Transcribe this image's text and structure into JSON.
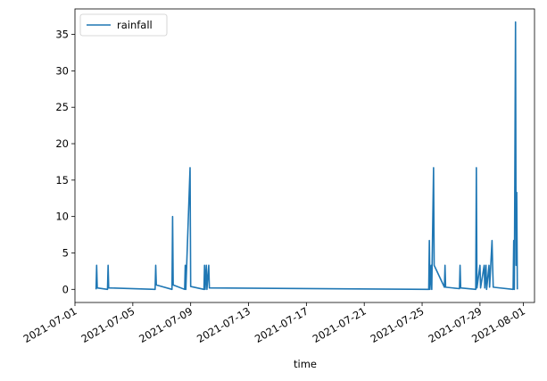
{
  "chart_data": {
    "type": "line",
    "xlabel": "time",
    "ylabel": "",
    "x_range": [
      "2021-07-01",
      "2021-08-01"
    ],
    "ylim": [
      -1.8,
      38.5
    ],
    "y_ticks": [
      0,
      5,
      10,
      15,
      20,
      25,
      30,
      35
    ],
    "x_ticks": [
      "2021-07-01",
      "2021-07-05",
      "2021-07-09",
      "2021-07-13",
      "2021-07-17",
      "2021-07-21",
      "2021-07-25",
      "2021-07-29",
      "2021-08-01"
    ],
    "legend": {
      "position": "top-left",
      "entries": [
        "rainfall"
      ]
    },
    "grid": false,
    "colors": {
      "series": "#1f77b4"
    },
    "series": [
      {
        "name": "rainfall",
        "points": [
          [
            "2021-07-02T11:00",
            0.0
          ],
          [
            "2021-07-02T12:00",
            3.3
          ],
          [
            "2021-07-02T13:00",
            0.2
          ],
          [
            "2021-07-03T06:00",
            0.0
          ],
          [
            "2021-07-03T07:00",
            3.3
          ],
          [
            "2021-07-03T08:00",
            0.2
          ],
          [
            "2021-07-06T13:00",
            0.0
          ],
          [
            "2021-07-06T14:00",
            3.3
          ],
          [
            "2021-07-06T15:00",
            0.6
          ],
          [
            "2021-07-07T17:00",
            0.0
          ],
          [
            "2021-07-07T18:00",
            10.0
          ],
          [
            "2021-07-07T19:00",
            0.6
          ],
          [
            "2021-07-08T14:00",
            0.0
          ],
          [
            "2021-07-08T15:00",
            3.3
          ],
          [
            "2021-07-08T16:00",
            0.0
          ],
          [
            "2021-07-08T23:00",
            16.7
          ],
          [
            "2021-07-09T00:00",
            0.4
          ],
          [
            "2021-07-09T22:00",
            0.0
          ],
          [
            "2021-07-09T23:00",
            3.3
          ],
          [
            "2021-07-10T00:00",
            0.0
          ],
          [
            "2021-07-10T02:00",
            3.3
          ],
          [
            "2021-07-10T03:00",
            0.0
          ],
          [
            "2021-07-10T06:00",
            3.3
          ],
          [
            "2021-07-10T07:00",
            0.2
          ],
          [
            "2021-07-25T11:00",
            0.0
          ],
          [
            "2021-07-25T12:00",
            6.7
          ],
          [
            "2021-07-25T13:00",
            0.0
          ],
          [
            "2021-07-25T15:00",
            3.3
          ],
          [
            "2021-07-25T16:00",
            0.0
          ],
          [
            "2021-07-25T19:00",
            16.7
          ],
          [
            "2021-07-25T20:00",
            3.3
          ],
          [
            "2021-07-26T13:00",
            0.3
          ],
          [
            "2021-07-26T14:00",
            3.3
          ],
          [
            "2021-07-26T15:00",
            0.3
          ],
          [
            "2021-07-27T14:00",
            0.1
          ],
          [
            "2021-07-27T15:00",
            3.3
          ],
          [
            "2021-07-27T16:00",
            0.2
          ],
          [
            "2021-07-28T17:00",
            0.0
          ],
          [
            "2021-07-28T18:00",
            16.7
          ],
          [
            "2021-07-28T19:00",
            0.2
          ],
          [
            "2021-07-29T00:00",
            3.3
          ],
          [
            "2021-07-29T01:00",
            0.2
          ],
          [
            "2021-07-29T07:00",
            3.3
          ],
          [
            "2021-07-29T08:00",
            0.2
          ],
          [
            "2021-07-29T10:00",
            3.3
          ],
          [
            "2021-07-29T11:00",
            0.0
          ],
          [
            "2021-07-29T15:00",
            3.3
          ],
          [
            "2021-07-29T16:00",
            0.3
          ],
          [
            "2021-07-29T20:00",
            6.7
          ],
          [
            "2021-07-29T21:00",
            3.3
          ],
          [
            "2021-07-29T22:00",
            0.3
          ],
          [
            "2021-07-31T07:00",
            0.0
          ],
          [
            "2021-07-31T08:00",
            6.7
          ],
          [
            "2021-07-31T09:00",
            0.0
          ],
          [
            "2021-07-31T11:00",
            36.7
          ],
          [
            "2021-07-31T12:00",
            3.3
          ],
          [
            "2021-07-31T13:00",
            13.3
          ],
          [
            "2021-07-31T14:00",
            0.0
          ]
        ]
      }
    ]
  }
}
